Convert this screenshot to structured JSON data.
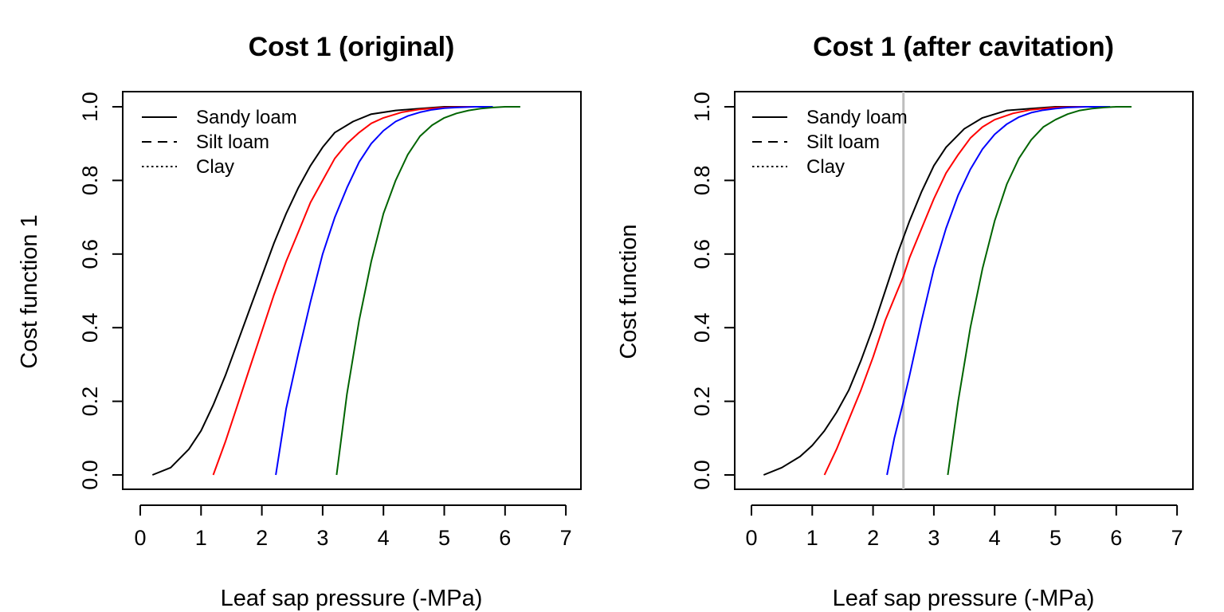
{
  "chart_data": [
    {
      "type": "line",
      "title": "Cost 1 (original)",
      "xlabel": "Leaf sap pressure (-MPa)",
      "ylabel": "Cost function 1",
      "xlim": [
        0,
        7
      ],
      "ylim": [
        0,
        1
      ],
      "xticks": [
        "0",
        "1",
        "2",
        "3",
        "4",
        "5",
        "6",
        "7"
      ],
      "yticks": [
        "0.0",
        "0.2",
        "0.4",
        "0.6",
        "0.8",
        "1.0"
      ],
      "legend": {
        "position": "top-left",
        "entries": [
          {
            "label": "Sandy loam",
            "linestyle": "solid"
          },
          {
            "label": "Silt loam",
            "linestyle": "dashed"
          },
          {
            "label": "Clay",
            "linestyle": "dotted"
          }
        ]
      },
      "series": [
        {
          "color": "#000000",
          "linestyle": "solid",
          "x": [
            0.2,
            0.5,
            0.8,
            1.0,
            1.2,
            1.4,
            1.6,
            1.8,
            2.0,
            2.2,
            2.4,
            2.6,
            2.8,
            3.0,
            3.2,
            3.5,
            3.8,
            4.2,
            4.6,
            5.0,
            5.4,
            5.8
          ],
          "y": [
            0.0,
            0.02,
            0.07,
            0.12,
            0.19,
            0.27,
            0.36,
            0.45,
            0.54,
            0.63,
            0.71,
            0.78,
            0.84,
            0.89,
            0.93,
            0.96,
            0.98,
            0.99,
            0.995,
            1.0,
            1.0,
            1.0
          ]
        },
        {
          "color": "#ff0000",
          "linestyle": "solid",
          "x": [
            1.2,
            1.4,
            1.6,
            1.8,
            2.0,
            2.2,
            2.4,
            2.6,
            2.8,
            3.0,
            3.2,
            3.4,
            3.6,
            3.8,
            4.0,
            4.3,
            4.6,
            5.0,
            5.4,
            5.8
          ],
          "y": [
            0.0,
            0.09,
            0.19,
            0.29,
            0.39,
            0.49,
            0.58,
            0.66,
            0.74,
            0.8,
            0.86,
            0.9,
            0.93,
            0.955,
            0.97,
            0.985,
            0.993,
            0.998,
            1.0,
            1.0
          ]
        },
        {
          "color": "#0000ff",
          "linestyle": "solid",
          "x": [
            2.23,
            2.4,
            2.6,
            2.8,
            3.0,
            3.2,
            3.4,
            3.6,
            3.8,
            4.0,
            4.2,
            4.4,
            4.6,
            4.8,
            5.0,
            5.2,
            5.5,
            5.8
          ],
          "y": [
            0.0,
            0.18,
            0.33,
            0.47,
            0.6,
            0.7,
            0.78,
            0.85,
            0.9,
            0.935,
            0.96,
            0.975,
            0.985,
            0.992,
            0.996,
            0.998,
            1.0,
            1.0
          ]
        },
        {
          "color": "#006400",
          "linestyle": "solid",
          "x": [
            3.23,
            3.4,
            3.6,
            3.8,
            4.0,
            4.2,
            4.4,
            4.6,
            4.8,
            5.0,
            5.2,
            5.4,
            5.6,
            5.8,
            6.0,
            6.25
          ],
          "y": [
            0.0,
            0.22,
            0.42,
            0.58,
            0.71,
            0.8,
            0.87,
            0.92,
            0.95,
            0.97,
            0.982,
            0.99,
            0.995,
            0.998,
            1.0,
            1.0
          ]
        }
      ]
    },
    {
      "type": "line",
      "title": "Cost 1 (after cavitation)",
      "xlabel": "Leaf sap pressure (-MPa)",
      "ylabel": "Cost function",
      "xlim": [
        0,
        7
      ],
      "ylim": [
        0,
        1
      ],
      "xticks": [
        "0",
        "1",
        "2",
        "3",
        "4",
        "5",
        "6",
        "7"
      ],
      "yticks": [
        "0.0",
        "0.2",
        "0.4",
        "0.6",
        "0.8",
        "1.0"
      ],
      "vline": {
        "x": 2.5,
        "color": "#bebebe"
      },
      "legend": {
        "position": "top-left",
        "entries": [
          {
            "label": "Sandy loam",
            "linestyle": "solid"
          },
          {
            "label": "Silt loam",
            "linestyle": "dashed"
          },
          {
            "label": "Clay",
            "linestyle": "dotted"
          }
        ]
      },
      "series": [
        {
          "color": "#000000",
          "linestyle": "solid",
          "x": [
            0.2,
            0.5,
            0.8,
            1.0,
            1.2,
            1.4,
            1.6,
            1.8,
            2.0,
            2.2,
            2.4,
            2.6,
            2.8,
            3.0,
            3.2,
            3.5,
            3.8,
            4.2,
            4.6,
            5.0,
            5.4,
            5.8
          ],
          "y": [
            0.0,
            0.02,
            0.05,
            0.08,
            0.12,
            0.17,
            0.23,
            0.31,
            0.4,
            0.5,
            0.6,
            0.69,
            0.77,
            0.84,
            0.89,
            0.94,
            0.97,
            0.99,
            0.995,
            1.0,
            1.0,
            1.0
          ]
        },
        {
          "color": "#ff0000",
          "linestyle": "solid",
          "x": [
            1.2,
            1.4,
            1.6,
            1.8,
            2.0,
            2.2,
            2.4,
            2.5,
            2.6,
            2.8,
            3.0,
            3.2,
            3.4,
            3.6,
            3.8,
            4.0,
            4.3,
            4.6,
            5.0,
            5.4,
            5.8
          ],
          "y": [
            0.0,
            0.07,
            0.15,
            0.23,
            0.32,
            0.42,
            0.5,
            0.54,
            0.59,
            0.67,
            0.75,
            0.82,
            0.87,
            0.915,
            0.945,
            0.965,
            0.982,
            0.992,
            0.998,
            1.0,
            1.0
          ]
        },
        {
          "color": "#0000ff",
          "linestyle": "solid",
          "x": [
            2.23,
            2.35,
            2.5,
            2.6,
            2.8,
            3.0,
            3.2,
            3.4,
            3.6,
            3.8,
            4.0,
            4.2,
            4.4,
            4.6,
            4.8,
            5.0,
            5.2,
            5.5,
            5.9
          ],
          "y": [
            0.0,
            0.1,
            0.2,
            0.27,
            0.42,
            0.56,
            0.67,
            0.76,
            0.83,
            0.885,
            0.925,
            0.953,
            0.972,
            0.984,
            0.991,
            0.995,
            0.998,
            1.0,
            1.0
          ]
        },
        {
          "color": "#006400",
          "linestyle": "solid",
          "x": [
            3.23,
            3.4,
            3.6,
            3.8,
            4.0,
            4.2,
            4.4,
            4.6,
            4.8,
            5.0,
            5.2,
            5.4,
            5.6,
            5.8,
            6.0,
            6.25
          ],
          "y": [
            0.0,
            0.2,
            0.4,
            0.56,
            0.69,
            0.79,
            0.86,
            0.91,
            0.945,
            0.965,
            0.98,
            0.99,
            0.995,
            0.998,
            1.0,
            1.0
          ]
        }
      ]
    }
  ]
}
